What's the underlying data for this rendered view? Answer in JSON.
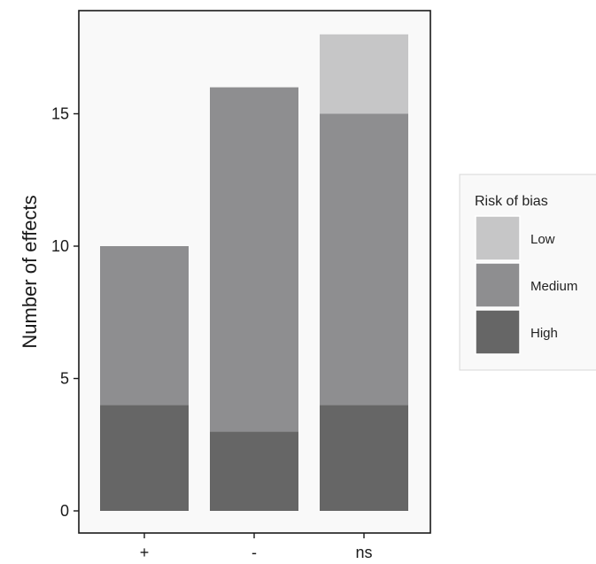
{
  "chart_data": {
    "type": "bar",
    "stacked": true,
    "categories": [
      "+",
      "-",
      "ns"
    ],
    "series": [
      {
        "name": "High",
        "color": "#666666",
        "values": [
          4,
          3,
          4
        ]
      },
      {
        "name": "Medium",
        "color": "#8e8e90",
        "values": [
          6,
          13,
          11
        ]
      },
      {
        "name": "Low",
        "color": "#c6c6c7",
        "values": [
          0,
          0,
          3
        ]
      }
    ],
    "xlabel": "",
    "ylabel": "Number of effects",
    "ylim": [
      0,
      18.9
    ],
    "yticks": [
      0,
      5,
      10,
      15
    ],
    "grid": false,
    "legend": {
      "title": "Risk of bias",
      "position": "right",
      "order": [
        "Low",
        "Medium",
        "High"
      ]
    },
    "panel_background": "#f9f9f9"
  }
}
